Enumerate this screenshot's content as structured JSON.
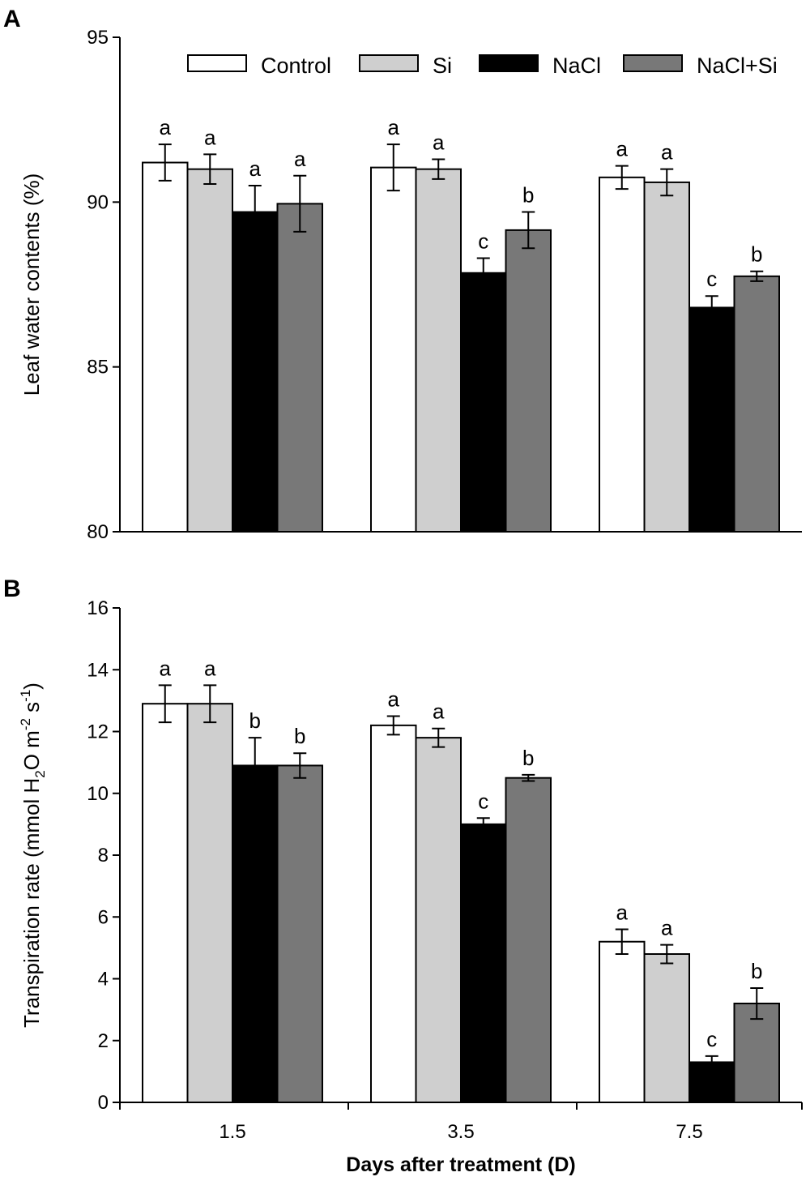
{
  "chart_data": {
    "type": "bar",
    "xlabel": "Days after treatment (D)",
    "categories": [
      "1.5",
      "3.5",
      "7.5"
    ],
    "legend": {
      "placement": "top-right",
      "entries": [
        {
          "name": "Control",
          "color": "#ffffff"
        },
        {
          "name": "Si",
          "color": "#cfcfcf"
        },
        {
          "name": "NaCl",
          "color": "#000000"
        },
        {
          "name": "NaCl+Si",
          "color": "#787878"
        }
      ]
    },
    "panels": [
      {
        "letter": "A",
        "ylabel": "Leaf water contents (%)",
        "ylim": [
          80,
          95
        ],
        "yticks": [
          80,
          85,
          90,
          95
        ],
        "series": [
          {
            "name": "Control",
            "values": [
              91.2,
              91.05,
              90.75
            ],
            "errors": [
              0.55,
              0.7,
              0.35
            ],
            "labels": [
              "a",
              "a",
              "a"
            ]
          },
          {
            "name": "Si",
            "values": [
              91.0,
              91.0,
              90.6
            ],
            "errors": [
              0.45,
              0.3,
              0.4
            ],
            "labels": [
              "a",
              "a",
              "a"
            ]
          },
          {
            "name": "NaCl",
            "values": [
              89.7,
              87.85,
              86.8
            ],
            "errors": [
              0.8,
              0.45,
              0.35
            ],
            "labels": [
              "a",
              "c",
              "c"
            ]
          },
          {
            "name": "NaCl+Si",
            "values": [
              89.95,
              89.15,
              87.75
            ],
            "errors": [
              0.85,
              0.55,
              0.15
            ],
            "labels": [
              "a",
              "b",
              "b"
            ]
          }
        ]
      },
      {
        "letter": "B",
        "ylabel": "Transpiration rate (mmol H",
        "ylabel_sub": "2",
        "ylabel_mid": "O m",
        "ylabel_sup1": "-2",
        "ylabel_mid2": " s",
        "ylabel_sup2": "-1",
        "ylabel_end": ")",
        "ylim": [
          0,
          16
        ],
        "yticks": [
          0,
          2,
          4,
          6,
          8,
          10,
          12,
          14,
          16
        ],
        "series": [
          {
            "name": "Control",
            "values": [
              12.9,
              12.2,
              5.2
            ],
            "errors": [
              0.6,
              0.3,
              0.4
            ],
            "labels": [
              "a",
              "a",
              "a"
            ]
          },
          {
            "name": "Si",
            "values": [
              12.9,
              11.8,
              4.8
            ],
            "errors": [
              0.6,
              0.3,
              0.3
            ],
            "labels": [
              "a",
              "a",
              "a"
            ]
          },
          {
            "name": "NaCl",
            "values": [
              10.9,
              9.0,
              1.3
            ],
            "errors": [
              0.9,
              0.2,
              0.2
            ],
            "labels": [
              "b",
              "c",
              "c"
            ]
          },
          {
            "name": "NaCl+Si",
            "values": [
              10.9,
              10.5,
              3.2
            ],
            "errors": [
              0.4,
              0.1,
              0.5
            ],
            "labels": [
              "b",
              "b",
              "b"
            ]
          }
        ]
      }
    ]
  }
}
